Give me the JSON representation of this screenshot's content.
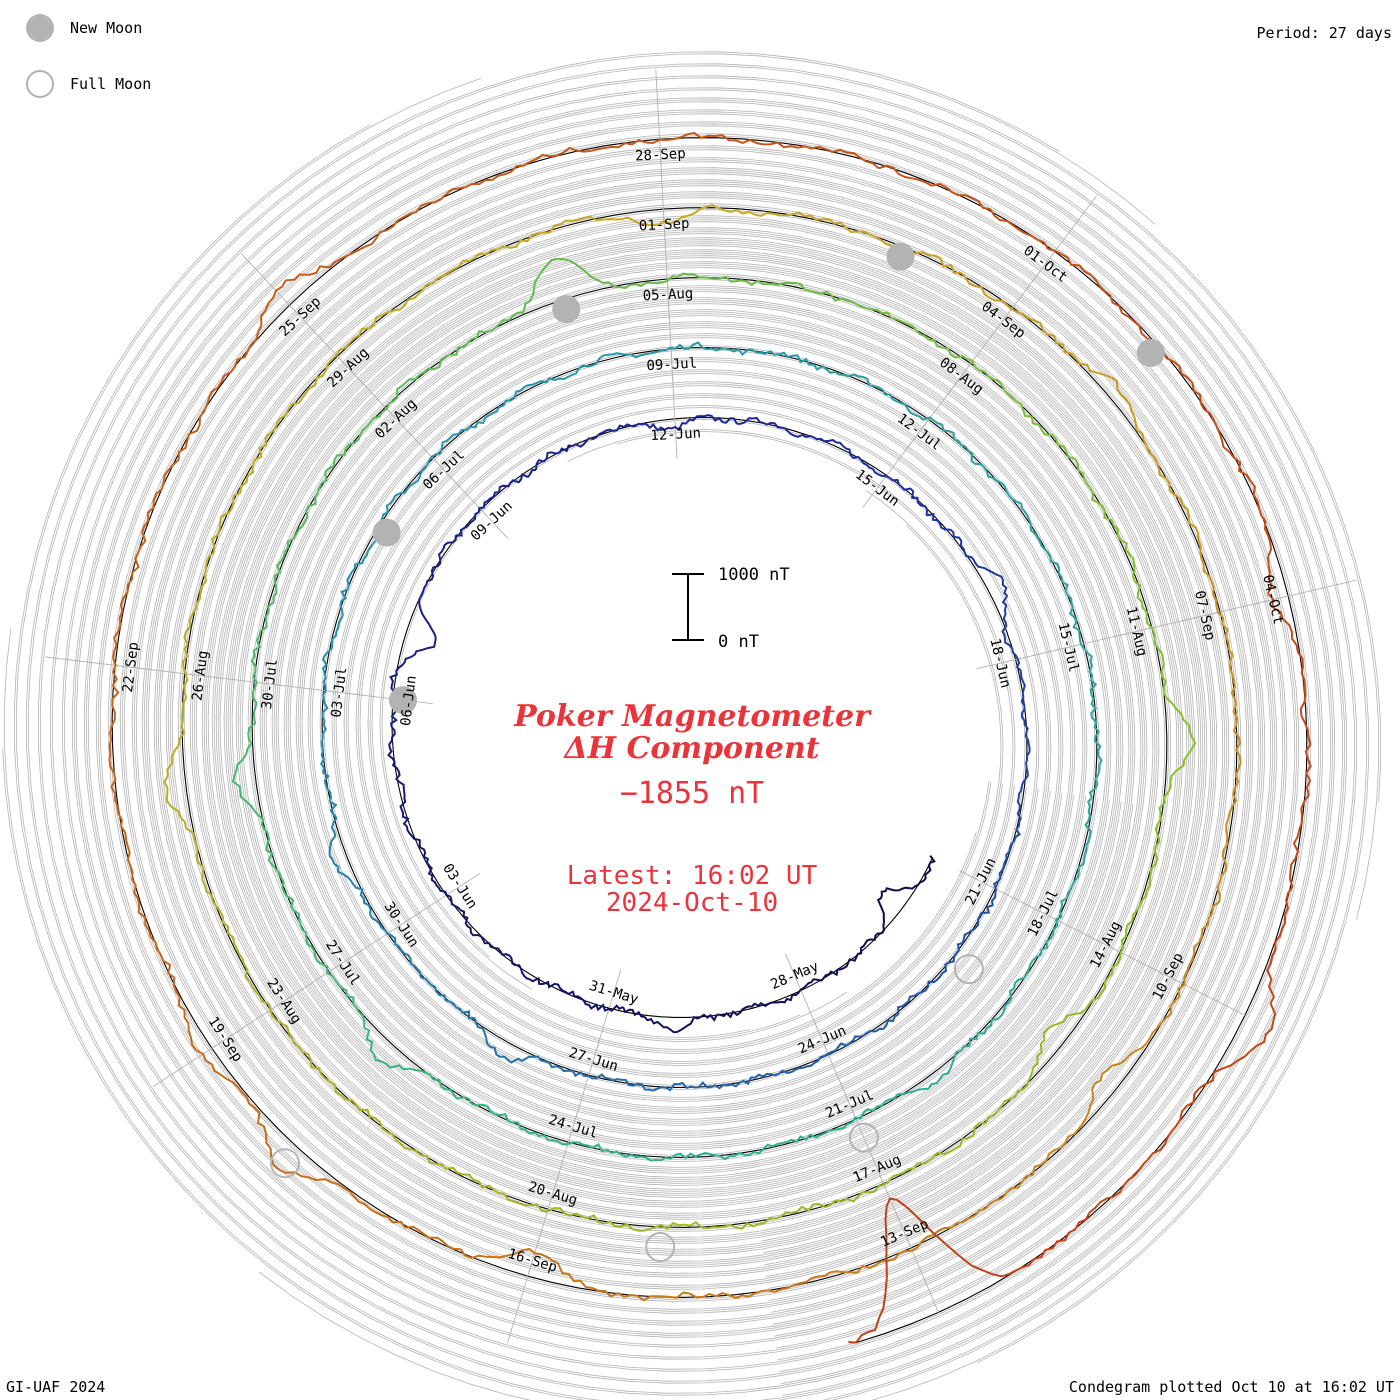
{
  "legend": {
    "new_moon": "New Moon",
    "full_moon": "Full Moon"
  },
  "period_label": "Period: 27 days",
  "footer": {
    "credit": "GI-UAF 2024",
    "plotted": "Condegram plotted Oct 10 at 16:02 UT"
  },
  "center": {
    "title_line1": "Poker Magnetometer",
    "title_line2": "ΔH Component",
    "current_value": "−1855 nT",
    "latest_line1": "Latest: 16:02 UT",
    "latest_line2": "2024-Oct-10",
    "scale_top": "1000 nT",
    "scale_bottom": "0 nT"
  },
  "colors": {
    "title_red": "#e8343a",
    "grid": "#b3b3b3",
    "moon": "#b3b3b3",
    "revolution_colors": [
      "#15104f",
      "#1f2a9a",
      "#2fa4a8",
      "#7dbb3c",
      "#b88a14",
      "#b31212"
    ],
    "spiral_gradient": [
      "#0d0b4a",
      "#1c2a9c",
      "#2a8fb0",
      "#30b38a",
      "#8cbf2a",
      "#c9a820",
      "#c86418",
      "#c0401a"
    ]
  },
  "chart_data": {
    "type": "line",
    "subtype": "condegram spiral",
    "title": "Poker Magnetometer ΔH Component",
    "period_days": 27,
    "start_date": "2024-05-25",
    "end_date": "2024-10-10",
    "scale_bar_nT": [
      0,
      1000
    ],
    "latest_value_nT": -1855,
    "date_labels": [
      {
        "label": "28-May",
        "date": "2024-05-28"
      },
      {
        "label": "31-May",
        "date": "2024-05-31"
      },
      {
        "label": "03-Jun",
        "date": "2024-06-03"
      },
      {
        "label": "06-Jun",
        "date": "2024-06-06"
      },
      {
        "label": "09-Jun",
        "date": "2024-06-09"
      },
      {
        "label": "12-Jun",
        "date": "2024-06-12"
      },
      {
        "label": "15-Jun",
        "date": "2024-06-15"
      },
      {
        "label": "18-Jun",
        "date": "2024-06-18"
      },
      {
        "label": "21-Jun",
        "date": "2024-06-21"
      },
      {
        "label": "24-Jun",
        "date": "2024-06-24"
      },
      {
        "label": "27-Jun",
        "date": "2024-06-27"
      },
      {
        "label": "30-Jun",
        "date": "2024-06-30"
      },
      {
        "label": "03-Jul",
        "date": "2024-07-03"
      },
      {
        "label": "06-Jul",
        "date": "2024-07-06"
      },
      {
        "label": "09-Jul",
        "date": "2024-07-09"
      },
      {
        "label": "12-Jul",
        "date": "2024-07-12"
      },
      {
        "label": "15-Jul",
        "date": "2024-07-15"
      },
      {
        "label": "18-Jul",
        "date": "2024-07-18"
      },
      {
        "label": "21-Jul",
        "date": "2024-07-21"
      },
      {
        "label": "24-Jul",
        "date": "2024-07-24"
      },
      {
        "label": "27-Jul",
        "date": "2024-07-27"
      },
      {
        "label": "30-Jul",
        "date": "2024-07-30"
      },
      {
        "label": "02-Aug",
        "date": "2024-08-02"
      },
      {
        "label": "05-Aug",
        "date": "2024-08-05"
      },
      {
        "label": "08-Aug",
        "date": "2024-08-08"
      },
      {
        "label": "11-Aug",
        "date": "2024-08-11"
      },
      {
        "label": "14-Aug",
        "date": "2024-08-14"
      },
      {
        "label": "17-Aug",
        "date": "2024-08-17"
      },
      {
        "label": "20-Aug",
        "date": "2024-08-20"
      },
      {
        "label": "23-Aug",
        "date": "2024-08-23"
      },
      {
        "label": "26-Aug",
        "date": "2024-08-26"
      },
      {
        "label": "29-Aug",
        "date": "2024-08-29"
      },
      {
        "label": "01-Sep",
        "date": "2024-09-01"
      },
      {
        "label": "04-Sep",
        "date": "2024-09-04"
      },
      {
        "label": "07-Sep",
        "date": "2024-09-07"
      },
      {
        "label": "10-Sep",
        "date": "2024-09-10"
      },
      {
        "label": "13-Sep",
        "date": "2024-09-13"
      },
      {
        "label": "16-Sep",
        "date": "2024-09-16"
      },
      {
        "label": "19-Sep",
        "date": "2024-09-19"
      },
      {
        "label": "22-Sep",
        "date": "2024-09-22"
      },
      {
        "label": "25-Sep",
        "date": "2024-09-25"
      },
      {
        "label": "28-Sep",
        "date": "2024-09-28"
      },
      {
        "label": "01-Oct",
        "date": "2024-10-01"
      },
      {
        "label": "04-Oct",
        "date": "2024-10-04"
      }
    ],
    "new_moons": [
      "2024-06-06",
      "2024-07-05",
      "2024-08-04",
      "2024-09-03",
      "2024-10-02"
    ],
    "full_moons": [
      "2024-06-22",
      "2024-07-21",
      "2024-08-19",
      "2024-09-18"
    ],
    "disturbances_nT": [
      {
        "date": "2024-05-26",
        "value": -400
      },
      {
        "date": "2024-05-30",
        "value": 200
      },
      {
        "date": "2024-06-07",
        "value": -500
      },
      {
        "date": "2024-06-12",
        "value": -150
      },
      {
        "date": "2024-06-17",
        "value": 250
      },
      {
        "date": "2024-06-28",
        "value": 250
      },
      {
        "date": "2024-07-01",
        "value": 220
      },
      {
        "date": "2024-07-20",
        "value": 120
      },
      {
        "date": "2024-07-26",
        "value": 300
      },
      {
        "date": "2024-07-29",
        "value": 300
      },
      {
        "date": "2024-08-04",
        "value": 650
      },
      {
        "date": "2024-08-12",
        "value": 400
      },
      {
        "date": "2024-08-15",
        "value": -300
      },
      {
        "date": "2024-08-25",
        "value": 300
      },
      {
        "date": "2024-09-01",
        "value": -200
      },
      {
        "date": "2024-09-05",
        "value": 200
      },
      {
        "date": "2024-09-11",
        "value": -300
      },
      {
        "date": "2024-09-16",
        "value": -400
      },
      {
        "date": "2024-09-18",
        "value": 400
      },
      {
        "date": "2024-09-19",
        "value": 200
      },
      {
        "date": "2024-09-25",
        "value": 300
      },
      {
        "date": "2024-10-04",
        "value": -250
      },
      {
        "date": "2024-10-07",
        "value": 450
      },
      {
        "date": "2024-10-10",
        "value": -1855
      }
    ]
  }
}
